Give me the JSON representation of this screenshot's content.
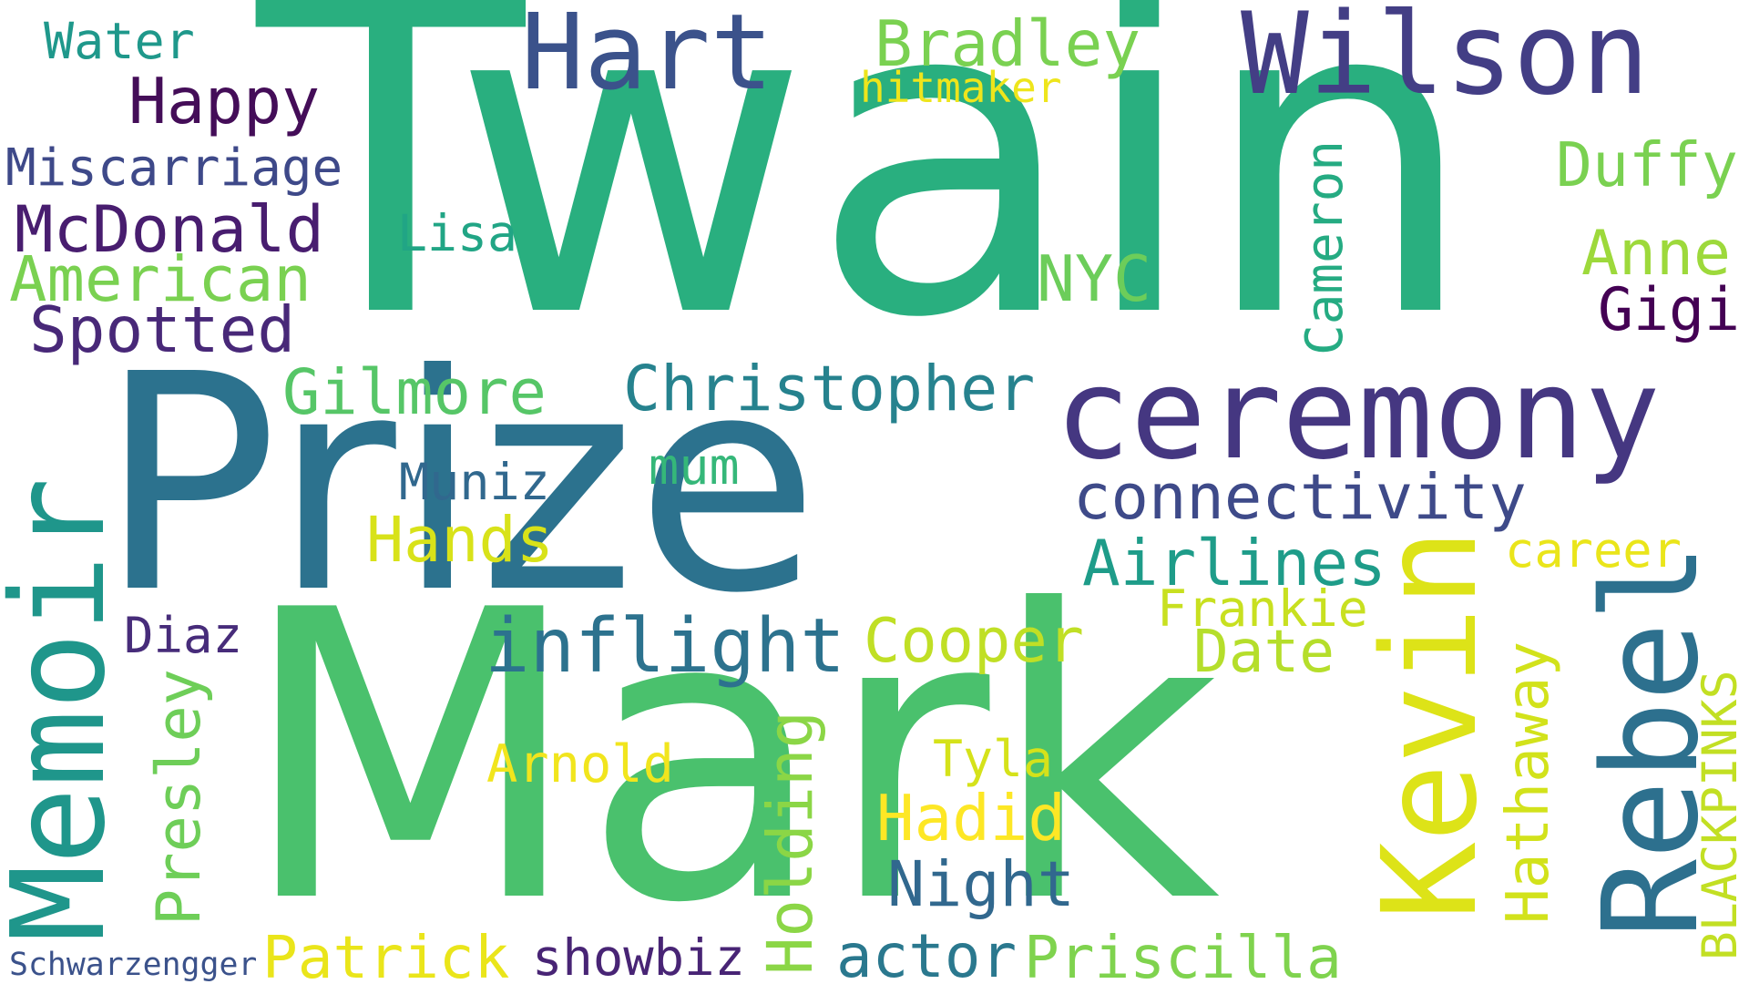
{
  "words": {
    "twain": {
      "text": "Twain",
      "color": "#29af7f"
    },
    "mark": {
      "text": "Mark",
      "color": "#4ac16d"
    },
    "prize": {
      "text": "Prize",
      "color": "#2c728e"
    },
    "ceremony": {
      "text": "ceremony",
      "color": "#453781"
    },
    "hart": {
      "text": "Hart",
      "color": "#3b528b"
    },
    "wilson": {
      "text": "Wilson",
      "color": "#433e85"
    },
    "memoir": {
      "text": "Memoir",
      "color": "#1f968b"
    },
    "kevin": {
      "text": "Kevin",
      "color": "#dde318"
    },
    "rebel": {
      "text": "Rebel",
      "color": "#2d708e"
    },
    "water": {
      "text": "Water",
      "color": "#1f988b"
    },
    "happy": {
      "text": "Happy",
      "color": "#440d58"
    },
    "miscarriage": {
      "text": "Miscarriage",
      "color": "#3e4989"
    },
    "mcdonald": {
      "text": "McDonald",
      "color": "#481d6f"
    },
    "american": {
      "text": "American",
      "color": "#7ad151"
    },
    "spotted": {
      "text": "Spotted",
      "color": "#482878"
    },
    "bradley": {
      "text": "Bradley",
      "color": "#7ad151"
    },
    "hitmaker": {
      "text": "hitmaker",
      "color": "#eee51c"
    },
    "lisa": {
      "text": "Lisa",
      "color": "#21a585"
    },
    "nyc": {
      "text": "NYC",
      "color": "#6ccd5a"
    },
    "cameron": {
      "text": "Cameron",
      "color": "#25ab82"
    },
    "duffy": {
      "text": "Duffy",
      "color": "#7ad151"
    },
    "anne": {
      "text": "Anne",
      "color": "#9dd93b"
    },
    "gigi": {
      "text": "Gigi",
      "color": "#440154"
    },
    "gilmore": {
      "text": "Gilmore",
      "color": "#56c667"
    },
    "christopher": {
      "text": "Christopher",
      "color": "#26828e"
    },
    "muniz": {
      "text": "Muniz",
      "color": "#31688e"
    },
    "mum": {
      "text": "mum",
      "color": "#35b779"
    },
    "connectivity": {
      "text": "connectivity",
      "color": "#3e4a89"
    },
    "hands": {
      "text": "Hands",
      "color": "#d8e219"
    },
    "airlines": {
      "text": "Airlines",
      "color": "#1e9c89"
    },
    "career": {
      "text": "career",
      "color": "#eae51a"
    },
    "frankie": {
      "text": "Frankie",
      "color": "#c8e020"
    },
    "diaz": {
      "text": "Diaz",
      "color": "#472c7a"
    },
    "inflight": {
      "text": "inflight",
      "color": "#2c728e"
    },
    "cooper": {
      "text": "Cooper",
      "color": "#c0df25"
    },
    "date": {
      "text": "Date",
      "color": "#b5de2b"
    },
    "presley": {
      "text": "Presley",
      "color": "#6ece58"
    },
    "arnold": {
      "text": "Arnold",
      "color": "#f1e51d"
    },
    "holding": {
      "text": "Holding",
      "color": "#8bd646"
    },
    "tyla": {
      "text": "Tyla",
      "color": "#d5e21a"
    },
    "hadid": {
      "text": "Hadid",
      "color": "#fde725"
    },
    "night": {
      "text": "Night",
      "color": "#31688e"
    },
    "hathaway": {
      "text": "Hathaway",
      "color": "#d2e21b"
    },
    "blackpinks": {
      "text": "BLACKPINKS",
      "color": "#c2df23"
    },
    "schwarzengger": {
      "text": "Schwarzengger",
      "color": "#3b528b"
    },
    "patrick": {
      "text": "Patrick",
      "color": "#eae51a"
    },
    "showbiz": {
      "text": "showbiz",
      "color": "#482475"
    },
    "actor": {
      "text": "actor",
      "color": "#2a788e"
    },
    "priscilla": {
      "text": "Priscilla",
      "color": "#7fd34e"
    }
  }
}
